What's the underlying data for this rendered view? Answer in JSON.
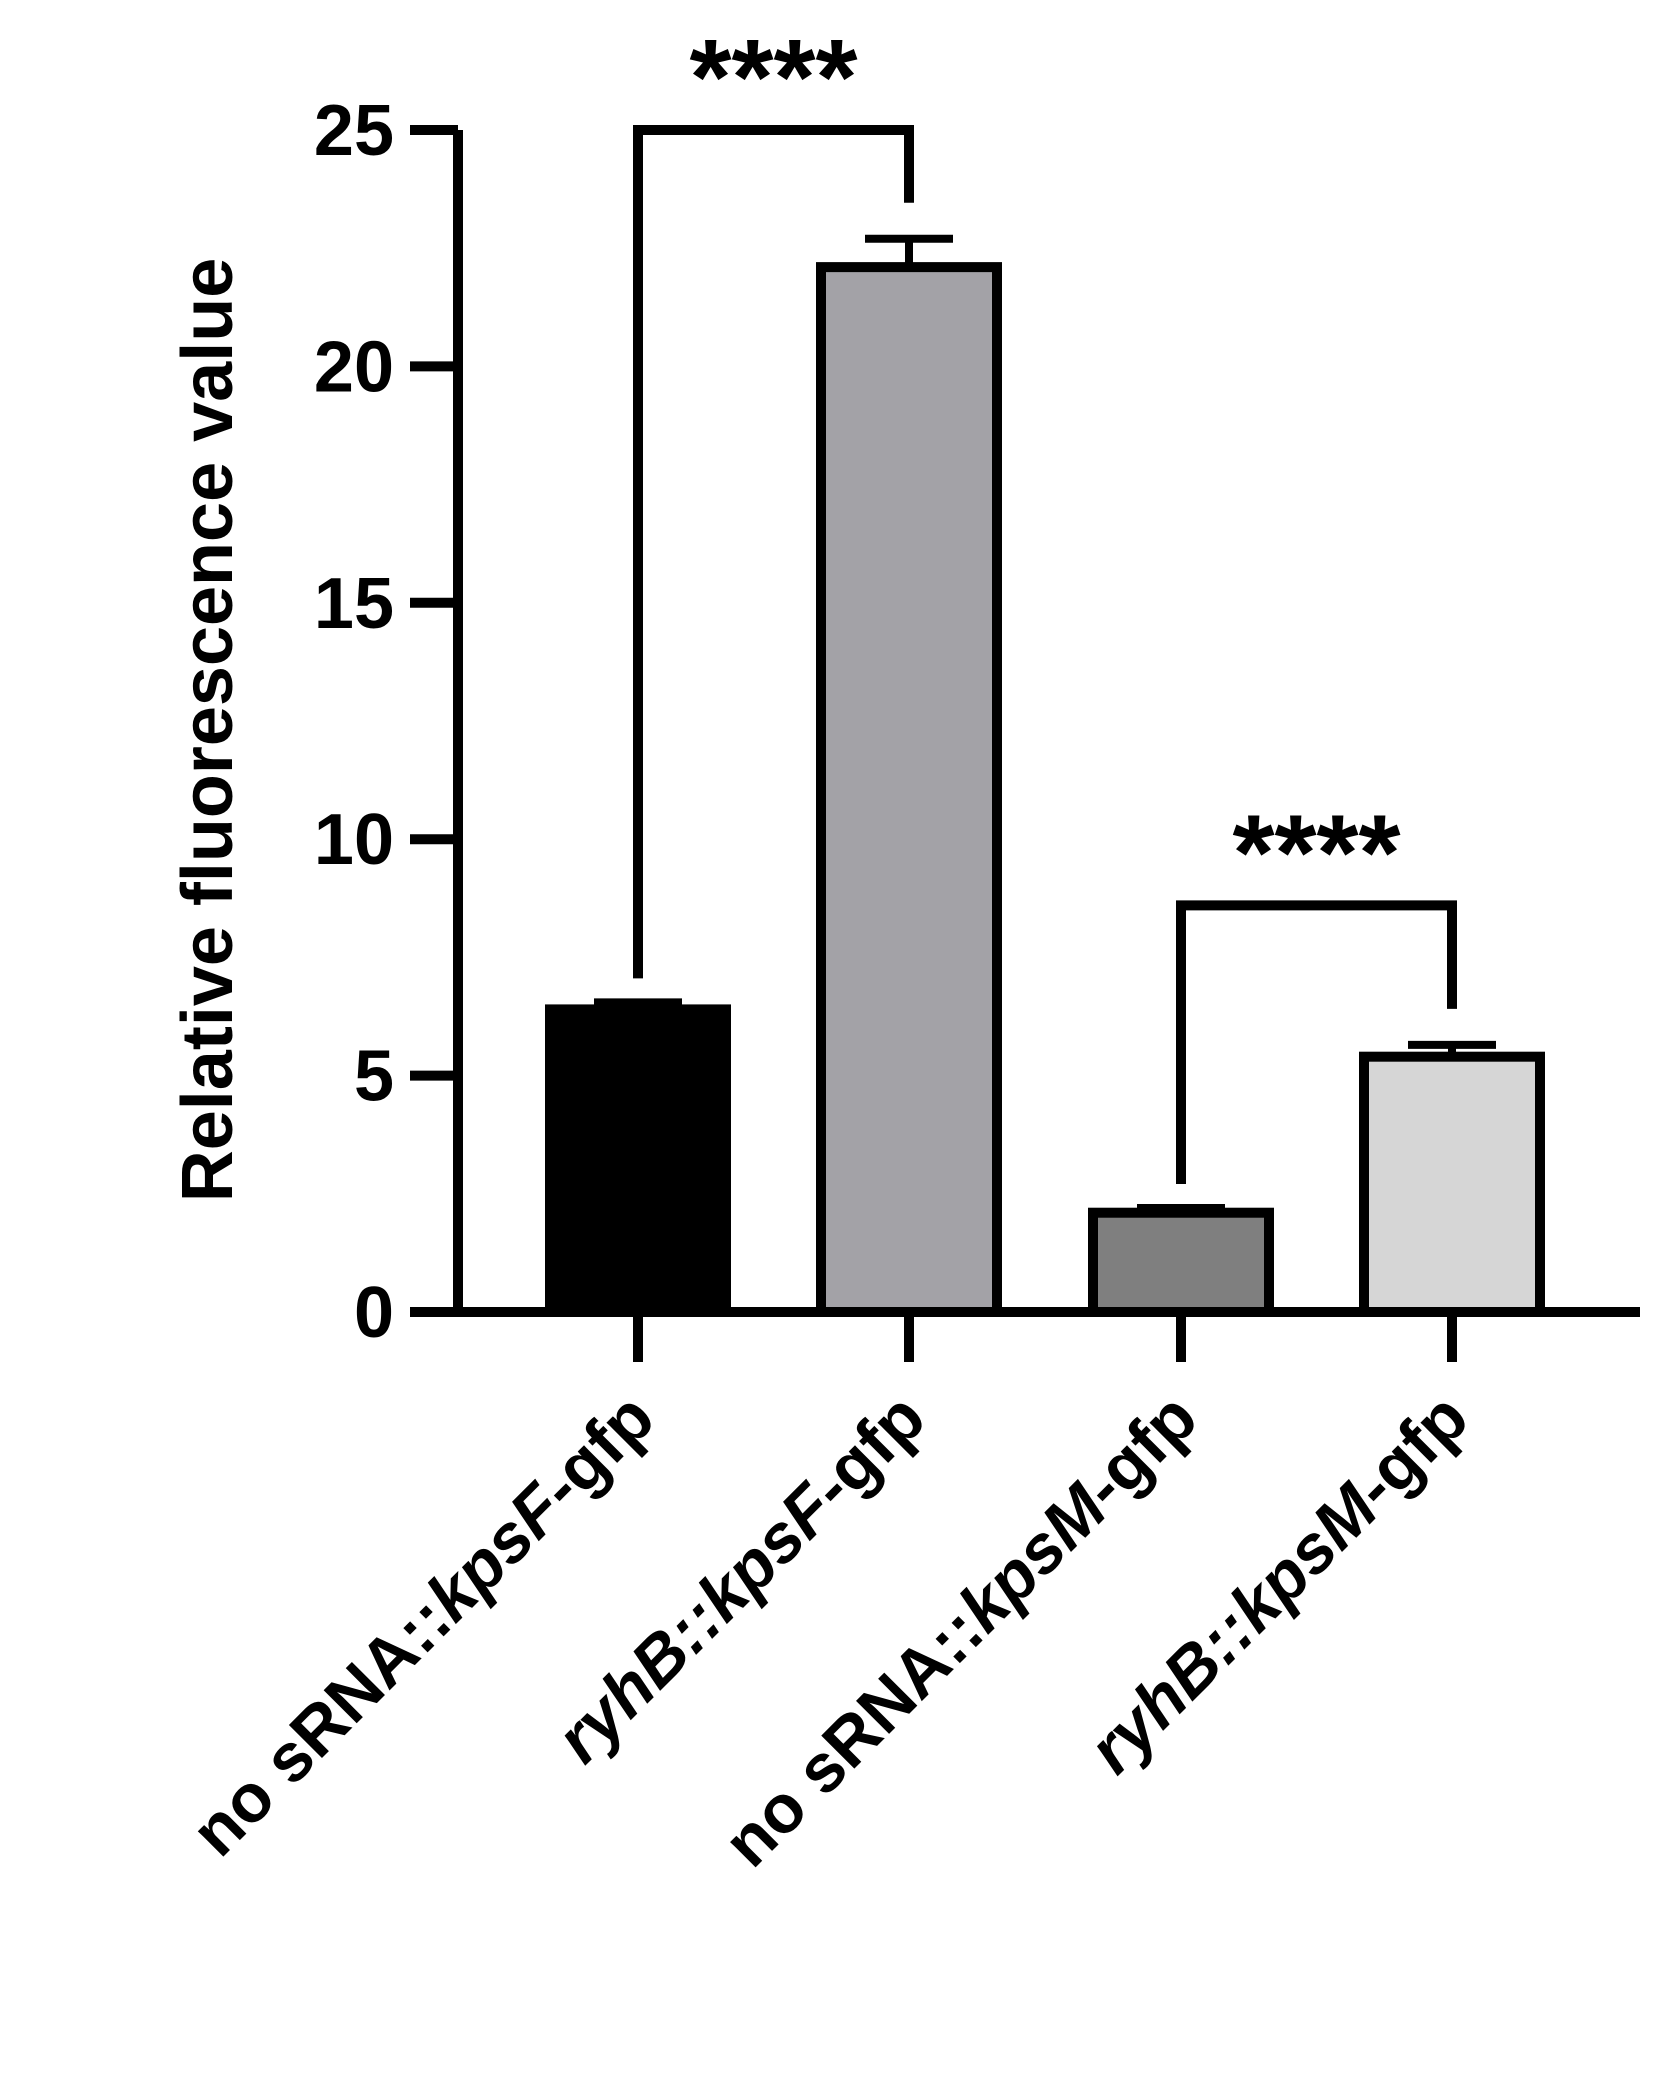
{
  "chart_data": {
    "type": "bar",
    "title": "",
    "xlabel": "",
    "ylabel": "Relative fluorescence value",
    "ylim": [
      0,
      25
    ],
    "yticks": [
      0,
      5,
      10,
      15,
      20,
      25
    ],
    "ytick_labels": [
      "0",
      "5",
      "10",
      "15",
      "20",
      "25"
    ],
    "grid": false,
    "legend": "none",
    "categories": [
      {
        "prefix": "no sRNA::",
        "gene": "kpsF",
        "suffix": "-gfp"
      },
      {
        "prefix": "ryhB",
        "gene": "::kpsF",
        "suffix": "-gfp"
      },
      {
        "prefix": "no sRNA::",
        "gene": "kpsM",
        "suffix": "-gfp"
      },
      {
        "prefix": "ryhB",
        "gene": "::kpsM",
        "suffix": "-gfp"
      }
    ],
    "values": [
      6.4,
      22.1,
      2.1,
      5.4
    ],
    "errors": [
      0.15,
      0.6,
      0.1,
      0.25
    ],
    "colors": [
      "#000000",
      "#a3a2a7",
      "#7f7f7f",
      "#d6d6d6"
    ],
    "comparisons": [
      {
        "from": 0,
        "to": 1,
        "label": "****",
        "y": 25
      },
      {
        "from": 2,
        "to": 3,
        "label": "****",
        "y": 8.6
      }
    ]
  }
}
